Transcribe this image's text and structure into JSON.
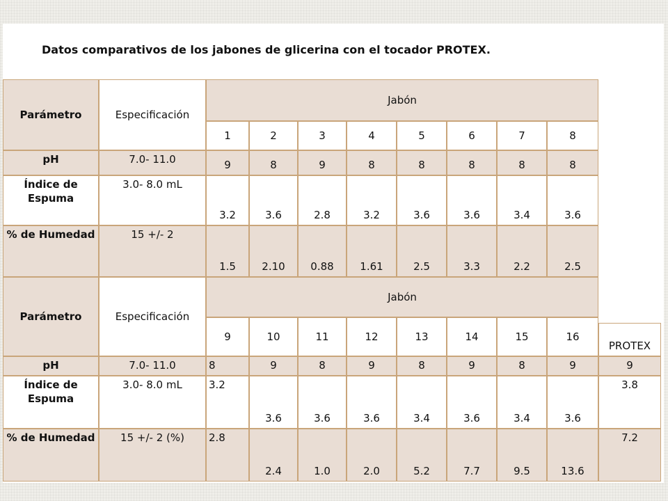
{
  "title": "Datos comparativos de los jabones de glicerina con el tocador PROTEX.",
  "table1": {
    "col_parametro": "Parámetro",
    "col_especificacion": "Especificación",
    "col_jabon": "Jabón",
    "soap_numbers": [
      "1",
      "2",
      "3",
      "4",
      "5",
      "6",
      "7",
      "8"
    ],
    "rows": [
      {
        "param": "pH",
        "spec": "7.0- 11.0",
        "values": [
          "9",
          "8",
          "9",
          "8",
          "8",
          "8",
          "8",
          "8"
        ]
      },
      {
        "param": "Índice de Espuma",
        "spec": "3.0- 8.0 mL",
        "values": [
          "3.2",
          "3.6",
          "2.8",
          "3.2",
          "3.6",
          "3.6",
          "3.4",
          "3.6"
        ]
      },
      {
        "param": "% de Humedad",
        "spec": "15 +/- 2",
        "values": [
          "1.5",
          "2.10",
          "0.88",
          "1.61",
          "2.5",
          "3.3",
          "2.2",
          "2.5"
        ]
      }
    ]
  },
  "table2": {
    "col_parametro": "Parámetro",
    "col_especificacion": "Especificación",
    "col_jabon": "Jabón",
    "soap_numbers": [
      "9",
      "10",
      "11",
      "12",
      "13",
      "14",
      "15",
      "16"
    ],
    "protex_label": "PROTEX",
    "rows": [
      {
        "param": "pH",
        "spec": "7.0- 11.0",
        "values": [
          "8",
          "9",
          "8",
          "9",
          "8",
          "9",
          "8",
          "9"
        ],
        "protex": "9"
      },
      {
        "param": "Índice de Espuma",
        "spec": "3.0- 8.0 mL",
        "values": [
          "3.2",
          "3.6",
          "3.6",
          "3.6",
          "3.4",
          "3.6",
          "3.4",
          "3.6"
        ],
        "protex": "3.8"
      },
      {
        "param": "% de Humedad",
        "spec": "15 +/- 2 (%)",
        "values": [
          "2.8",
          "2.4",
          "1.0",
          "2.0",
          "5.2",
          "7.7",
          "9.5",
          "13.6"
        ],
        "protex": "7.2"
      }
    ]
  }
}
